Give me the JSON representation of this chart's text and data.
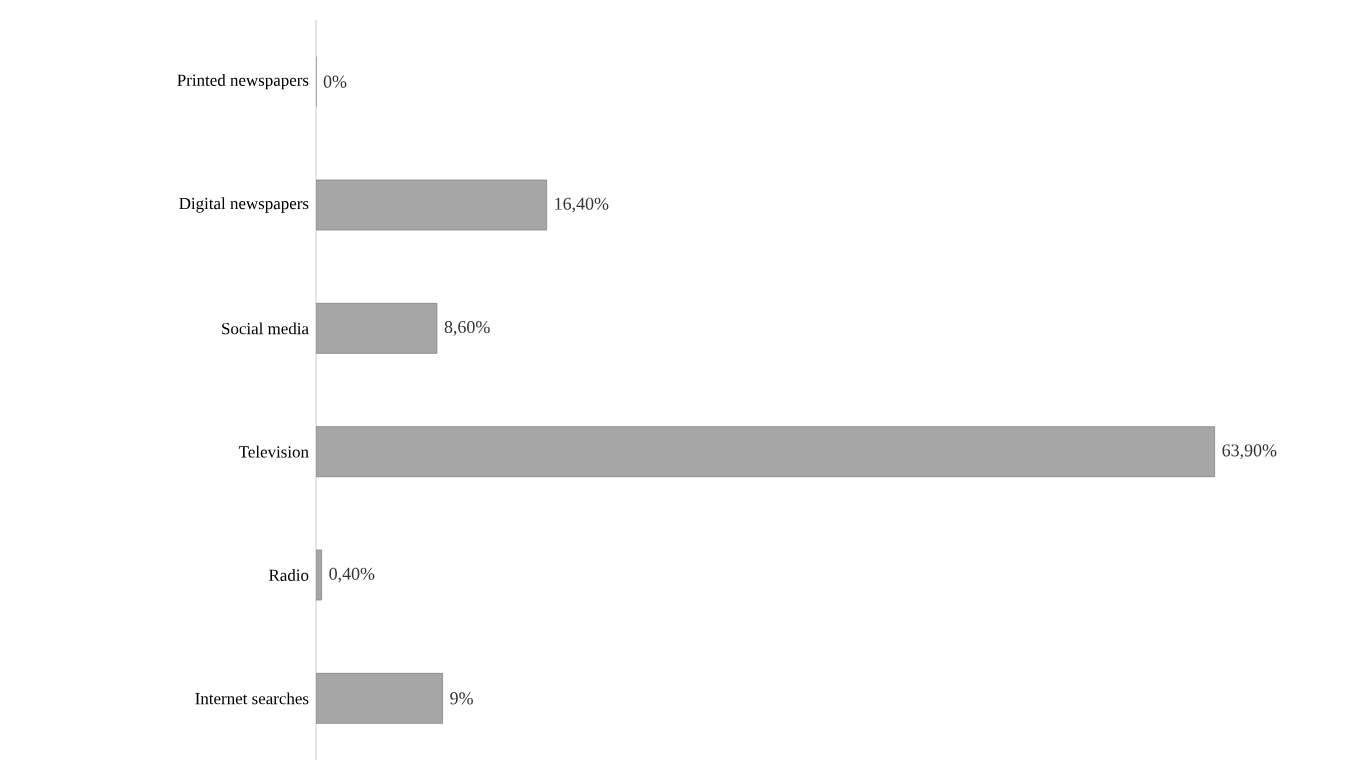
{
  "chart_data": {
    "type": "bar",
    "orientation": "horizontal",
    "categories": [
      "Printed newspapers",
      "Digital newspapers",
      "Social media",
      "Television",
      "Radio",
      "Internet searches"
    ],
    "values": [
      0,
      16.4,
      8.6,
      63.9,
      0.4,
      9
    ],
    "value_labels": [
      "0%",
      "16,40%",
      "8,60%",
      "63,90%",
      "0,40%",
      "9%"
    ],
    "color": "#a6a6a6"
  }
}
